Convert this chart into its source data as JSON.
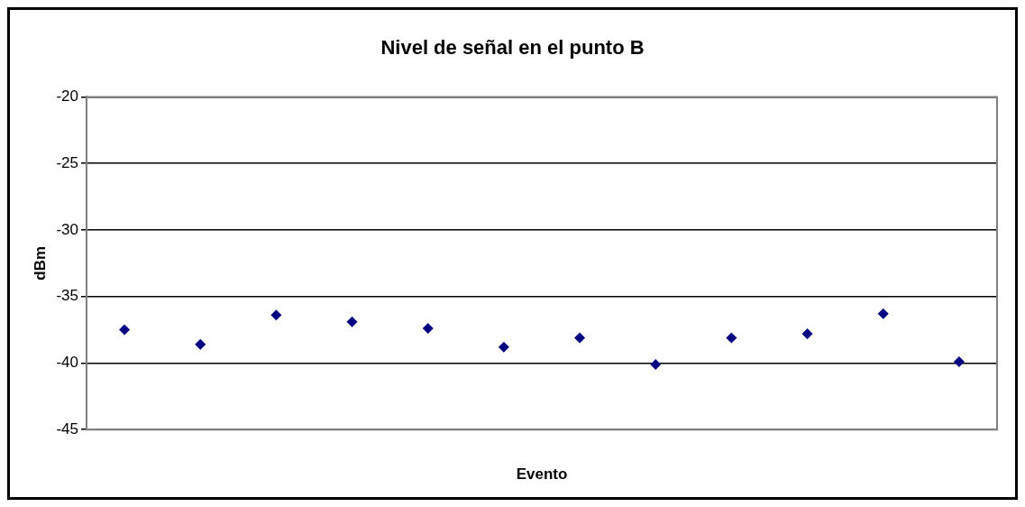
{
  "chart_data": {
    "type": "scatter",
    "title": "Nivel de señal en el punto B",
    "xlabel": "Evento",
    "ylabel": "dBm",
    "categories": [
      null,
      null,
      null,
      null,
      null,
      null,
      null,
      null,
      null,
      null,
      null,
      null
    ],
    "series": [
      {
        "color": "#000080",
        "values": [
          -37.5,
          -38.6,
          -36.4,
          -36.9,
          -37.4,
          -38.8,
          -38.1,
          -40.1,
          -38.1,
          -37.8,
          -36.3,
          -39.9
        ]
      }
    ],
    "ylim": [
      -45,
      -20
    ],
    "yticks": [
      -45,
      -40,
      -35,
      -30,
      -25,
      -20
    ],
    "grid": "y",
    "legend": false,
    "marker": "diamond"
  }
}
